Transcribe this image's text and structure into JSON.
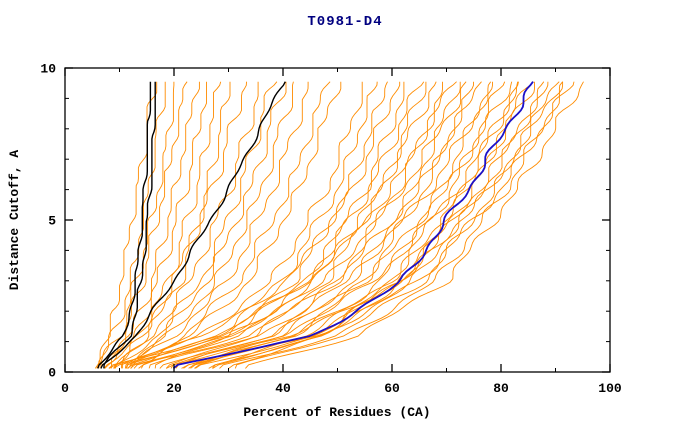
{
  "title": "T0981-D4",
  "chart_data": {
    "type": "line",
    "title": "T0981-D4",
    "xlabel": "Percent of Residues (CA)",
    "ylabel": "Distance Cutoff, A",
    "xlim": [
      0,
      100
    ],
    "ylim": [
      0,
      10
    ],
    "x_ticks": [
      0,
      20,
      40,
      60,
      80,
      100
    ],
    "y_ticks": [
      0,
      5,
      10
    ],
    "x_minor_step": 10,
    "y_minor_step": 1,
    "grid": false,
    "legend": "none",
    "frame": "box",
    "colors": {
      "ensemble": "#ff8c00",
      "reference": "#000000",
      "highlight": "#1c10c8",
      "frame": "#000000",
      "title": "#000080"
    },
    "y_anchors": [
      0.2,
      1.2,
      3,
      6,
      9.5
    ],
    "series": {
      "ensemble_orange": [
        [
          5,
          8,
          10,
          13,
          16
        ],
        [
          6,
          9,
          12,
          15,
          18
        ],
        [
          6,
          10,
          13,
          17,
          20
        ],
        [
          7,
          11,
          14,
          18,
          22
        ],
        [
          7,
          12,
          16,
          20,
          24
        ],
        [
          8,
          13,
          17,
          22,
          26
        ],
        [
          8,
          14,
          19,
          24,
          28
        ],
        [
          9,
          15,
          21,
          26,
          30
        ],
        [
          9,
          14,
          20,
          27,
          33
        ],
        [
          10,
          16,
          23,
          30,
          36
        ],
        [
          10,
          17,
          25,
          32,
          38
        ],
        [
          11,
          18,
          26,
          34,
          40
        ],
        [
          11,
          19,
          28,
          36,
          42
        ],
        [
          12,
          20,
          30,
          38,
          45
        ],
        [
          12,
          22,
          32,
          41,
          48
        ],
        [
          13,
          23,
          34,
          43,
          50
        ],
        [
          10,
          25,
          38,
          48,
          55
        ],
        [
          12,
          28,
          40,
          50,
          57
        ],
        [
          14,
          30,
          42,
          52,
          59
        ],
        [
          8,
          26,
          41,
          53,
          61
        ],
        [
          16,
          32,
          45,
          55,
          63
        ],
        [
          10,
          30,
          44,
          56,
          65
        ],
        [
          18,
          35,
          48,
          58,
          66
        ],
        [
          12,
          32,
          46,
          58,
          68
        ],
        [
          20,
          38,
          50,
          61,
          70
        ],
        [
          9,
          28,
          45,
          60,
          71
        ],
        [
          22,
          40,
          53,
          64,
          72
        ],
        [
          11,
          30,
          48,
          62,
          74
        ],
        [
          24,
          42,
          55,
          66,
          75
        ],
        [
          13,
          34,
          50,
          65,
          76
        ],
        [
          26,
          45,
          58,
          69,
          78
        ],
        [
          15,
          36,
          52,
          67,
          79
        ],
        [
          28,
          47,
          60,
          71,
          80
        ],
        [
          17,
          38,
          55,
          70,
          82
        ],
        [
          30,
          48,
          62,
          73,
          83
        ],
        [
          19,
          40,
          57,
          72,
          84
        ],
        [
          25,
          46,
          62,
          75,
          85
        ],
        [
          21,
          42,
          60,
          74,
          86
        ],
        [
          27,
          48,
          64,
          77,
          88
        ],
        [
          23,
          45,
          62,
          76,
          89
        ],
        [
          29,
          50,
          66,
          79,
          90
        ],
        [
          18,
          42,
          62,
          78,
          91
        ],
        [
          31,
          52,
          68,
          81,
          92
        ],
        [
          22,
          46,
          65,
          80,
          93
        ],
        [
          33,
          54,
          70,
          83,
          95
        ]
      ],
      "reference_black": [
        [
          6,
          11,
          13,
          14.5,
          15.5
        ],
        [
          7,
          12,
          14,
          15.5,
          16.5
        ],
        [
          7,
          13,
          20,
          30,
          40
        ]
      ],
      "highlight_blue": [
        [
          20,
          46,
          62,
          74,
          86
        ]
      ]
    }
  }
}
